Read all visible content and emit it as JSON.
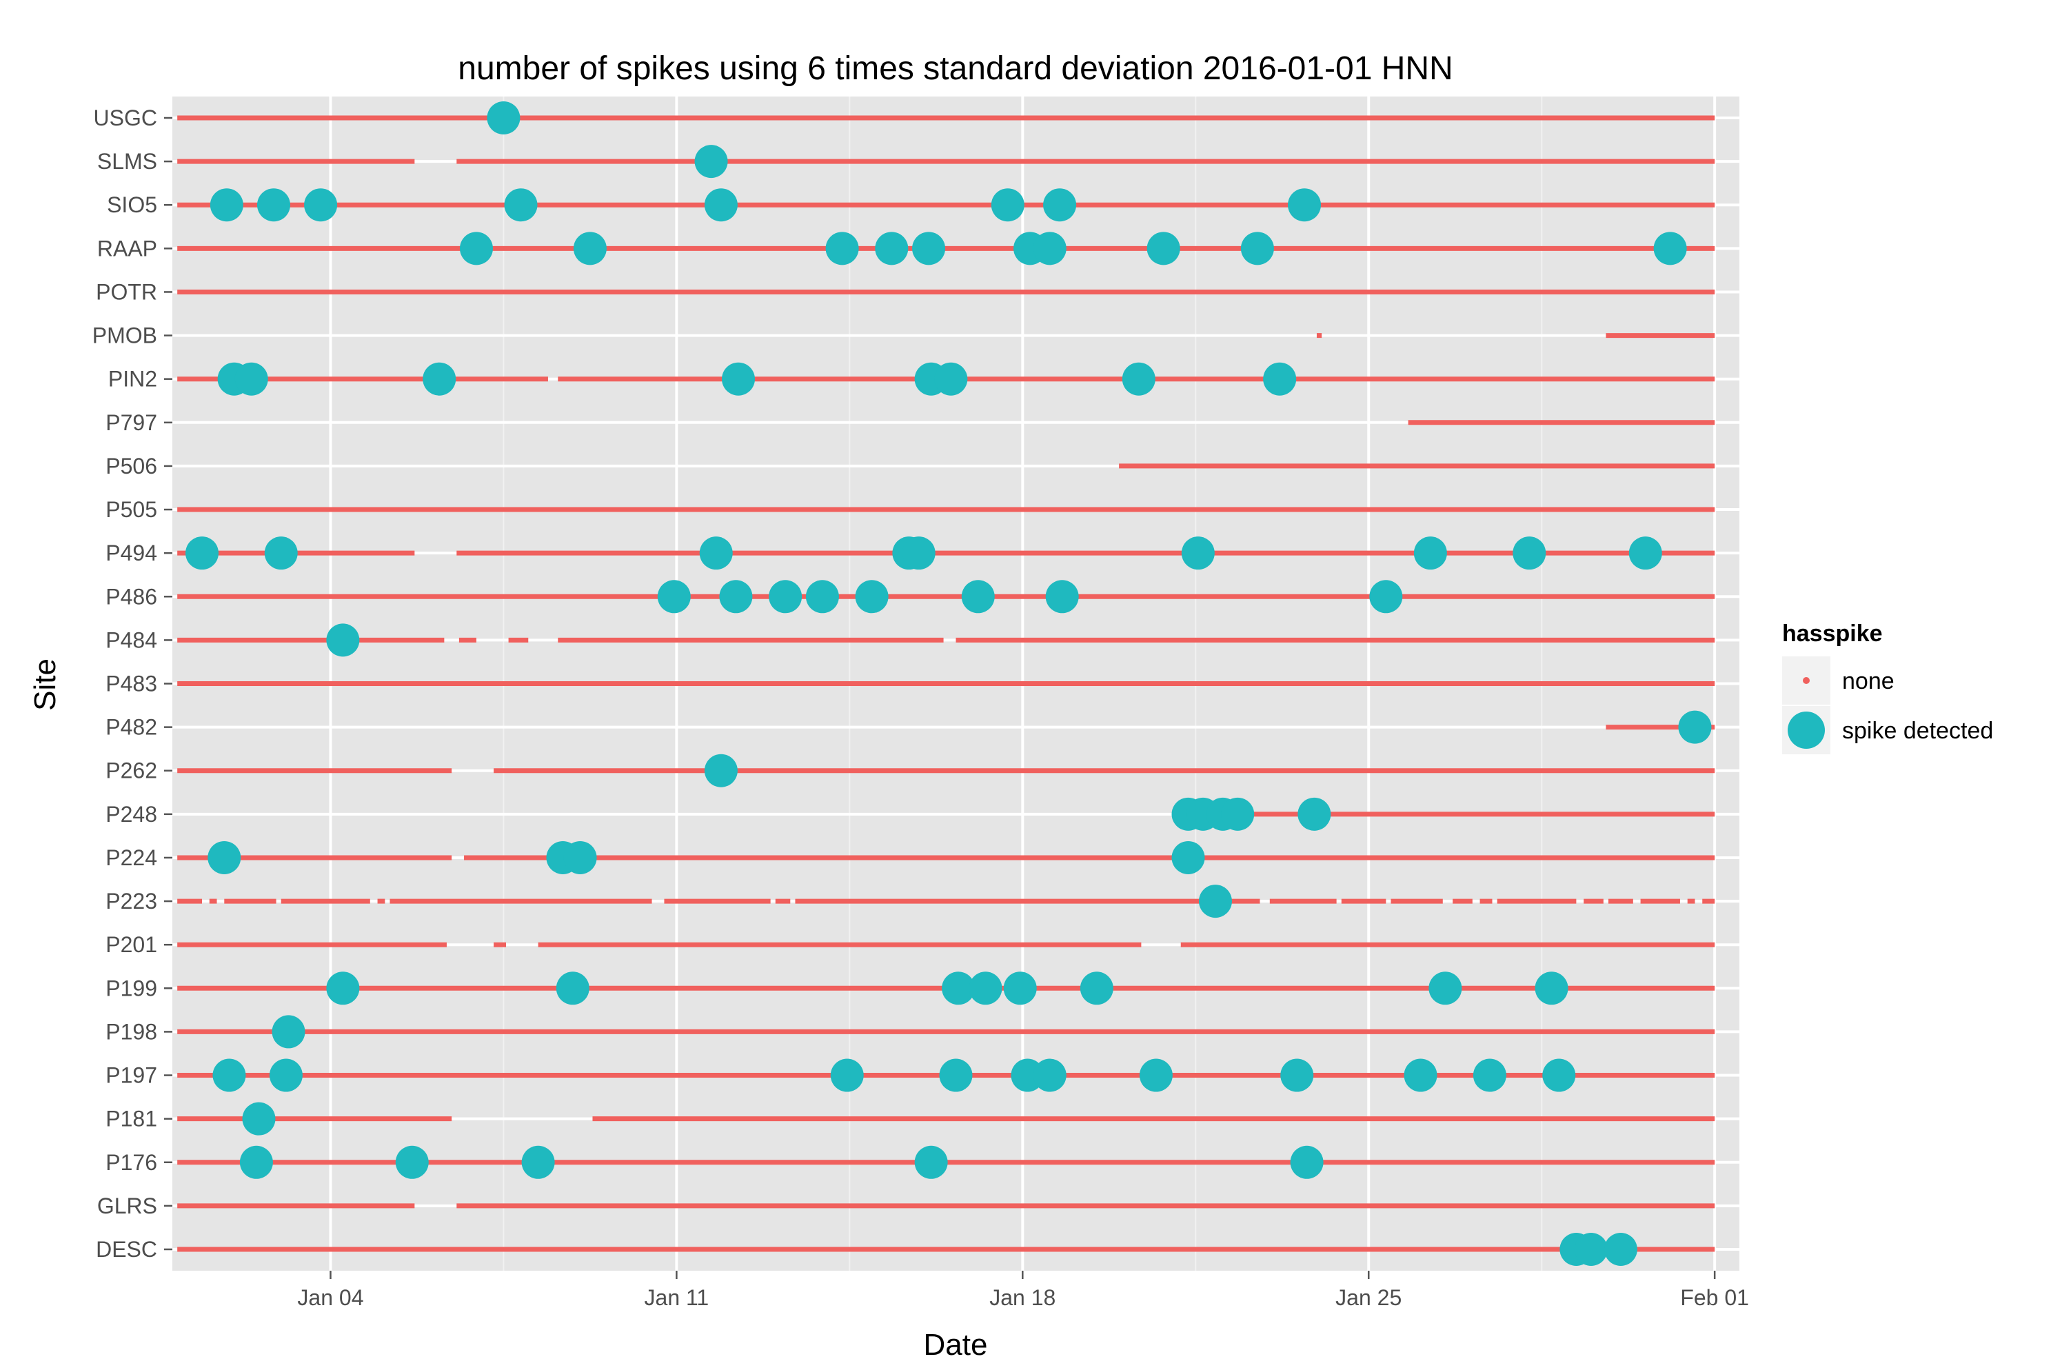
{
  "chart_data": {
    "type": "scatter",
    "title": "number of spikes using  6 times standard deviation 2016-01-01 HNN",
    "xlabel": "Date",
    "ylabel": "Site",
    "xlim": [
      -0.2,
      31.5
    ],
    "x_unit": "days since 2016-01-01",
    "x_ticks": [
      {
        "value": 3,
        "label": "Jan 04"
      },
      {
        "value": 10,
        "label": "Jan 11"
      },
      {
        "value": 17,
        "label": "Jan 18"
      },
      {
        "value": 24,
        "label": "Jan 25"
      },
      {
        "value": 31,
        "label": "Feb 01"
      }
    ],
    "categories": [
      "USGC",
      "SLMS",
      "SIO5",
      "RAAP",
      "POTR",
      "PMOB",
      "PIN2",
      "P797",
      "P506",
      "P505",
      "P494",
      "P486",
      "P484",
      "P483",
      "P482",
      "P262",
      "P248",
      "P224",
      "P223",
      "P201",
      "P199",
      "P198",
      "P197",
      "P181",
      "P176",
      "GLRS",
      "DESC"
    ],
    "legend": {
      "title": "hasspike",
      "position": "right",
      "entries": [
        {
          "label": "none",
          "color": "#f0605d"
        },
        {
          "label": "spike detected",
          "color": "#1fb9bf"
        }
      ]
    },
    "series": [
      {
        "name": "none",
        "marker": "small-point",
        "segments": {
          "USGC": [
            [
              -0.1,
              31
            ]
          ],
          "SLMS": [
            [
              -0.1,
              4.7
            ],
            [
              5.55,
              31
            ]
          ],
          "SIO5": [
            [
              -0.1,
              31
            ]
          ],
          "RAAP": [
            [
              -0.1,
              31
            ]
          ],
          "POTR": [
            [
              -0.1,
              31
            ]
          ],
          "PMOB": [
            [
              22.95,
              23.05
            ],
            [
              28.8,
              31
            ]
          ],
          "PIN2": [
            [
              -0.1,
              7.4
            ],
            [
              7.6,
              31
            ]
          ],
          "P797": [
            [
              24.8,
              31
            ]
          ],
          "P506": [
            [
              18.95,
              31
            ]
          ],
          "P505": [
            [
              -0.1,
              31
            ]
          ],
          "P494": [
            [
              -0.1,
              4.7
            ],
            [
              5.55,
              31
            ]
          ],
          "P486": [
            [
              -0.1,
              31
            ]
          ],
          "P484": [
            [
              -0.1,
              5.3
            ],
            [
              5.6,
              5.95
            ],
            [
              6.6,
              7.0
            ],
            [
              7.6,
              15.4
            ],
            [
              15.65,
              31
            ]
          ],
          "P483": [
            [
              -0.1,
              31
            ]
          ],
          "P482": [
            [
              28.8,
              31
            ]
          ],
          "P262": [
            [
              -0.1,
              5.45
            ],
            [
              6.3,
              31
            ]
          ],
          "P248": [
            [
              20.5,
              31
            ]
          ],
          "P224": [
            [
              -0.1,
              5.45
            ],
            [
              5.7,
              31
            ]
          ],
          "P223": [
            [
              -0.1,
              0.4
            ],
            [
              0.55,
              0.7
            ],
            [
              0.85,
              1.9
            ],
            [
              2.0,
              3.8
            ],
            [
              3.95,
              4.1
            ],
            [
              4.2,
              9.5
            ],
            [
              9.75,
              11.9
            ],
            [
              12.0,
              12.3
            ],
            [
              12.4,
              20.8
            ],
            [
              20.9,
              21.8
            ],
            [
              22.0,
              23.35
            ],
            [
              23.45,
              24.35
            ],
            [
              24.45,
              25.5
            ],
            [
              25.7,
              26.1
            ],
            [
              26.25,
              26.5
            ],
            [
              26.6,
              28.2
            ],
            [
              28.35,
              28.75
            ],
            [
              28.85,
              29.35
            ],
            [
              29.5,
              30.3
            ],
            [
              30.45,
              30.6
            ],
            [
              30.75,
              31
            ]
          ],
          "P201": [
            [
              -0.1,
              5.35
            ],
            [
              6.3,
              6.55
            ],
            [
              7.2,
              19.4
            ],
            [
              20.2,
              31
            ]
          ],
          "P199": [
            [
              -0.1,
              31
            ]
          ],
          "P198": [
            [
              -0.1,
              31
            ]
          ],
          "P197": [
            [
              -0.1,
              31
            ]
          ],
          "P181": [
            [
              -0.1,
              5.45
            ],
            [
              8.3,
              31
            ]
          ],
          "P176": [
            [
              -0.1,
              31
            ]
          ],
          "GLRS": [
            [
              -0.1,
              4.7
            ],
            [
              5.55,
              31
            ]
          ],
          "DESC": [
            [
              -0.1,
              31
            ]
          ]
        }
      },
      {
        "name": "spike detected",
        "marker": "large-circle",
        "points": {
          "USGC": [
            6.5
          ],
          "SLMS": [
            10.7
          ],
          "SIO5": [
            0.9,
            1.85,
            2.8,
            6.85,
            10.9,
            16.7,
            17.75,
            22.7
          ],
          "RAAP": [
            5.95,
            8.25,
            13.35,
            14.35,
            15.1,
            17.15,
            17.55,
            19.85,
            21.75,
            30.1
          ],
          "PIN2": [
            1.05,
            1.4,
            5.2,
            11.25,
            15.15,
            15.55,
            19.35,
            22.2
          ],
          "P494": [
            0.4,
            2.0,
            10.8,
            14.7,
            14.9,
            20.55,
            25.25,
            27.25,
            29.6
          ],
          "P486": [
            9.95,
            11.2,
            12.2,
            12.95,
            13.95,
            16.1,
            17.8,
            24.35
          ],
          "P484": [
            3.25
          ],
          "P482": [
            30.6
          ],
          "P262": [
            10.9
          ],
          "P248": [
            20.35,
            20.65,
            21.05,
            21.35,
            22.9
          ],
          "P224": [
            0.85,
            7.7,
            8.05,
            20.35
          ],
          "P223": [
            20.9
          ],
          "P199": [
            3.25,
            7.9,
            15.7,
            16.25,
            16.95,
            18.5,
            25.55,
            27.7
          ],
          "P198": [
            2.15
          ],
          "P197": [
            0.95,
            2.1,
            13.45,
            15.65,
            17.1,
            17.55,
            19.7,
            22.55,
            25.05,
            26.45,
            27.85
          ],
          "P181": [
            1.55
          ],
          "P176": [
            1.5,
            4.65,
            7.2,
            15.15,
            22.75
          ],
          "DESC": [
            28.2,
            28.5,
            29.1
          ]
        }
      }
    ]
  }
}
